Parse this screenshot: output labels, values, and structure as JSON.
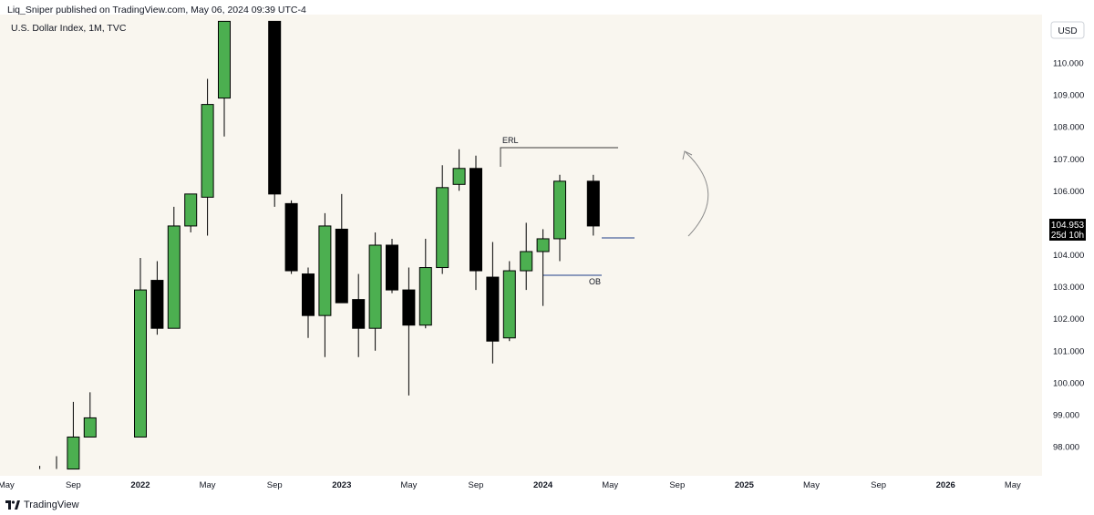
{
  "header": {
    "published_text": "Liq_Sniper published on TradingView.com, May 06, 2024 09:39 UTC-4"
  },
  "footer": {
    "brand": "TradingView",
    "logo_icon": "tradingview-logo-icon"
  },
  "colors": {
    "up": "#4caf50",
    "down": "#000000",
    "background": "#f9f6ef",
    "level": "#1e3f8a"
  },
  "chart_data": {
    "type": "candlestick",
    "title": "U.S. Dollar Index, 1M, TVC",
    "currency": "USD",
    "ylim": [
      97.3,
      111.4
    ],
    "y_ticks": [
      "98.000",
      "99.000",
      "100.000",
      "101.000",
      "102.000",
      "103.000",
      "104.000",
      "105.000",
      "106.000",
      "107.000",
      "108.000",
      "109.000",
      "110.000"
    ],
    "x_ticks": [
      "May",
      "Sep",
      "2022",
      "May",
      "Sep",
      "2023",
      "May",
      "Sep",
      "2024",
      "May",
      "Sep",
      "2025",
      "May",
      "Sep",
      "2026",
      "May"
    ],
    "candles": [
      {
        "date": "2021-07",
        "o": null,
        "h": 97.4,
        "l": 97.3,
        "c": null
      },
      {
        "date": "2021-08",
        "o": null,
        "h": 97.7,
        "l": 97.3,
        "c": null
      },
      {
        "date": "2021-09",
        "o": 97.3,
        "h": 99.4,
        "l": 97.3,
        "c": 98.3
      },
      {
        "date": "2021-10",
        "o": 98.3,
        "h": 99.7,
        "l": 98.3,
        "c": 98.9
      },
      {
        "date": "2022-01",
        "o": 98.3,
        "h": 103.9,
        "l": 98.3,
        "c": 102.9
      },
      {
        "date": "2022-02",
        "o": 103.2,
        "h": 103.8,
        "l": 101.5,
        "c": 101.7
      },
      {
        "date": "2022-03",
        "o": 101.7,
        "h": 105.5,
        "l": 101.8,
        "c": 104.9
      },
      {
        "date": "2022-04",
        "o": 104.9,
        "h": 105.9,
        "l": 104.7,
        "c": 105.9
      },
      {
        "date": "2022-05",
        "o": 105.8,
        "h": 109.5,
        "l": 104.6,
        "c": 108.7
      },
      {
        "date": "2022-06",
        "o": 108.9,
        "h": 111.3,
        "l": 107.7,
        "c": 111.3
      },
      {
        "date": "2022-09",
        "o": 111.3,
        "h": 111.3,
        "l": 105.5,
        "c": 105.9
      },
      {
        "date": "2022-10",
        "o": 105.6,
        "h": 105.7,
        "l": 103.4,
        "c": 103.5
      },
      {
        "date": "2022-11",
        "o": 103.4,
        "h": 103.6,
        "l": 101.4,
        "c": 102.1
      },
      {
        "date": "2022-12",
        "o": 102.1,
        "h": 105.3,
        "l": 100.8,
        "c": 104.9
      },
      {
        "date": "2023-01",
        "o": 104.8,
        "h": 105.9,
        "l": 102.5,
        "c": 102.5
      },
      {
        "date": "2023-02",
        "o": 102.6,
        "h": 103.4,
        "l": 100.8,
        "c": 101.7
      },
      {
        "date": "2023-03",
        "o": 101.7,
        "h": 104.7,
        "l": 101.0,
        "c": 104.3
      },
      {
        "date": "2023-04",
        "o": 104.3,
        "h": 104.5,
        "l": 102.8,
        "c": 102.9
      },
      {
        "date": "2023-05",
        "o": 102.9,
        "h": 103.6,
        "l": 99.6,
        "c": 101.8
      },
      {
        "date": "2023-06",
        "o": 101.8,
        "h": 104.5,
        "l": 101.7,
        "c": 103.6
      },
      {
        "date": "2023-07",
        "o": 103.6,
        "h": 106.8,
        "l": 103.4,
        "c": 106.1
      },
      {
        "date": "2023-08",
        "o": 106.2,
        "h": 107.3,
        "l": 106.0,
        "c": 106.7
      },
      {
        "date": "2023-09",
        "o": 106.7,
        "h": 107.1,
        "l": 102.9,
        "c": 103.5
      },
      {
        "date": "2023-10",
        "o": 103.3,
        "h": 104.4,
        "l": 100.6,
        "c": 101.3
      },
      {
        "date": "2023-11",
        "o": 101.4,
        "h": 103.8,
        "l": 101.3,
        "c": 103.5
      },
      {
        "date": "2023-12",
        "o": 103.5,
        "h": 105.0,
        "l": 102.9,
        "c": 104.1
      },
      {
        "date": "2024-01",
        "o": 104.1,
        "h": 104.8,
        "l": 102.4,
        "c": 104.5
      },
      {
        "date": "2024-02",
        "o": 104.5,
        "h": 106.5,
        "l": 103.8,
        "c": 106.3
      },
      {
        "date": "2024-04",
        "o": 106.3,
        "h": 106.5,
        "l": 104.6,
        "c": 104.9
      }
    ],
    "annotations": [
      {
        "label": "ERL",
        "price": 107.35
      },
      {
        "label": "OB",
        "price": 103.35
      }
    ],
    "current_price": {
      "value": "104.953",
      "countdown": "25d 10h"
    }
  }
}
